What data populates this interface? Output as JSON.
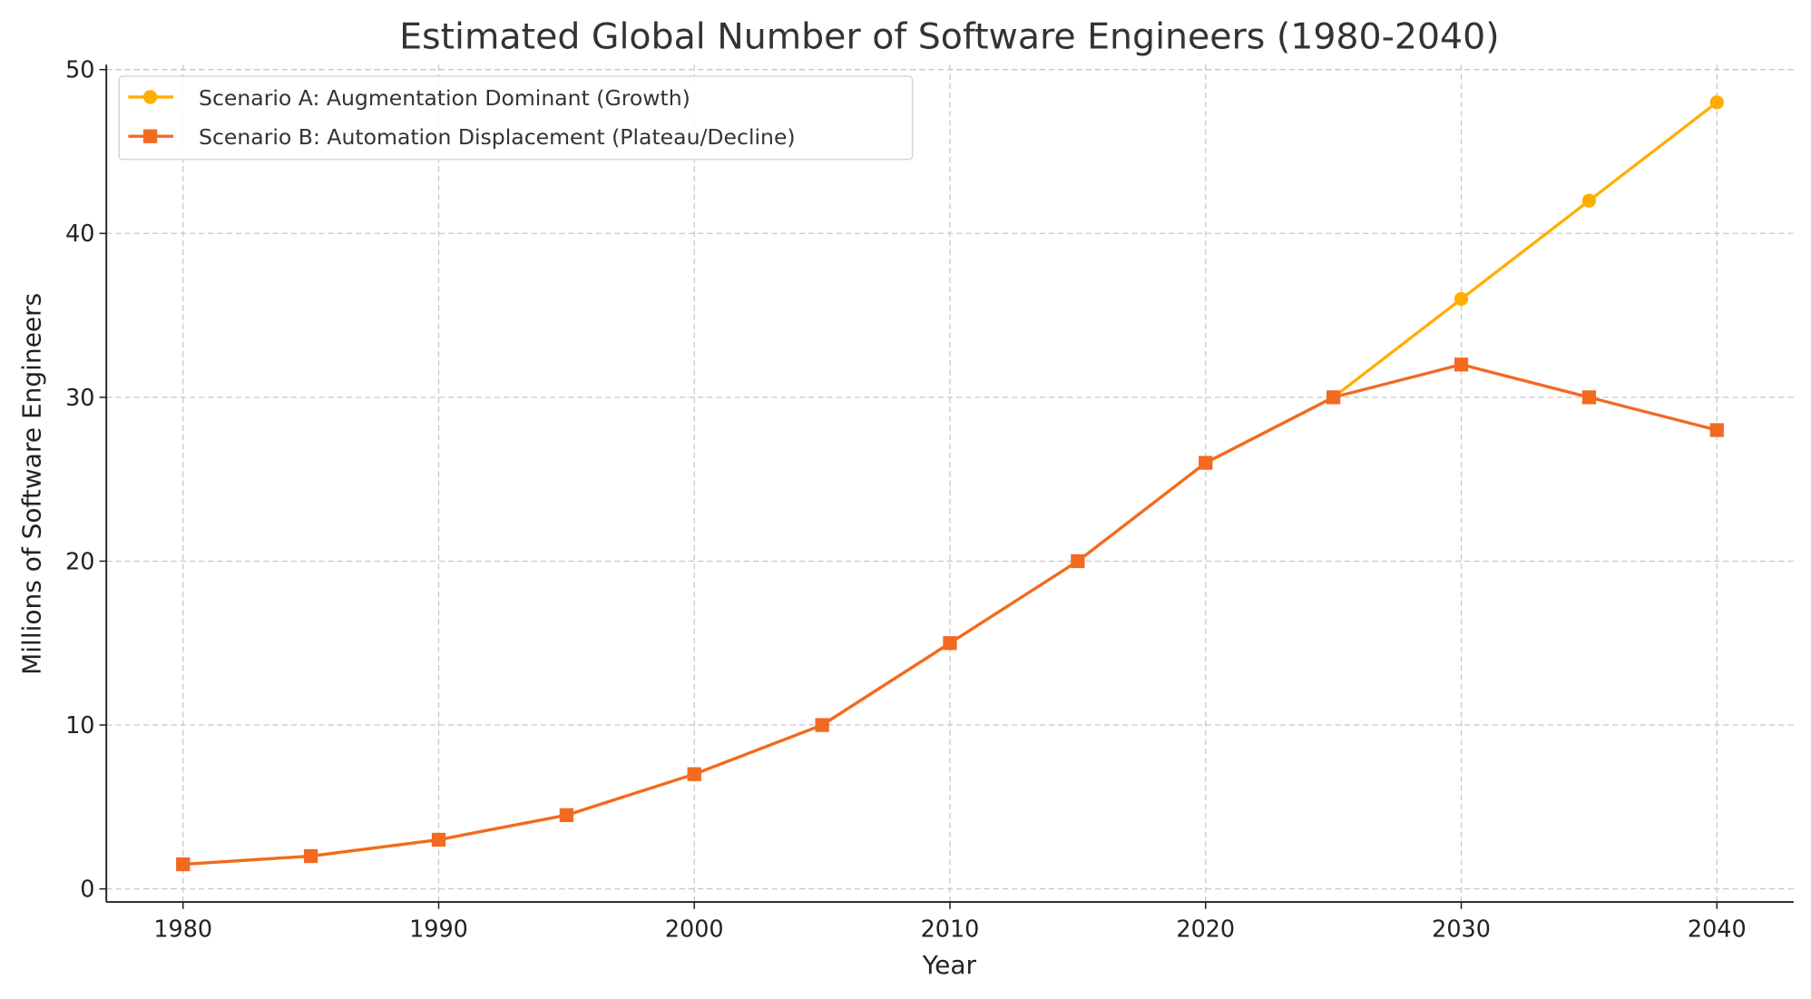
{
  "chart_data": {
    "type": "line",
    "title": "Estimated Global Number of Software Engineers (1980-2040)",
    "xlabel": "Year",
    "ylabel": "Millions of Software Engineers",
    "x": [
      1980,
      1985,
      1990,
      1995,
      2000,
      2005,
      2010,
      2015,
      2020,
      2025,
      2030,
      2035,
      2040
    ],
    "xticks": [
      "1980",
      "1990",
      "2000",
      "2010",
      "2020",
      "2030",
      "2040"
    ],
    "yticks": [
      "0",
      "10",
      "20",
      "30",
      "40",
      "50"
    ],
    "xlim": [
      1977,
      2043
    ],
    "ylim": [
      -0.8,
      50.3
    ],
    "grid": true,
    "legend_position": "top-left",
    "series": [
      {
        "name": "Scenario A: Augmentation Dominant (Growth)",
        "marker": "circle",
        "color": "#FFAE00",
        "values": [
          1.5,
          2,
          3,
          4.5,
          7,
          10,
          15,
          20,
          26,
          30,
          36,
          42,
          48
        ]
      },
      {
        "name": "Scenario B: Automation Displacement (Plateau/Decline)",
        "marker": "square",
        "color": "#F26A21",
        "values": [
          1.5,
          2,
          3,
          4.5,
          7,
          10,
          15,
          20,
          26,
          30,
          32,
          30,
          28
        ]
      }
    ]
  }
}
